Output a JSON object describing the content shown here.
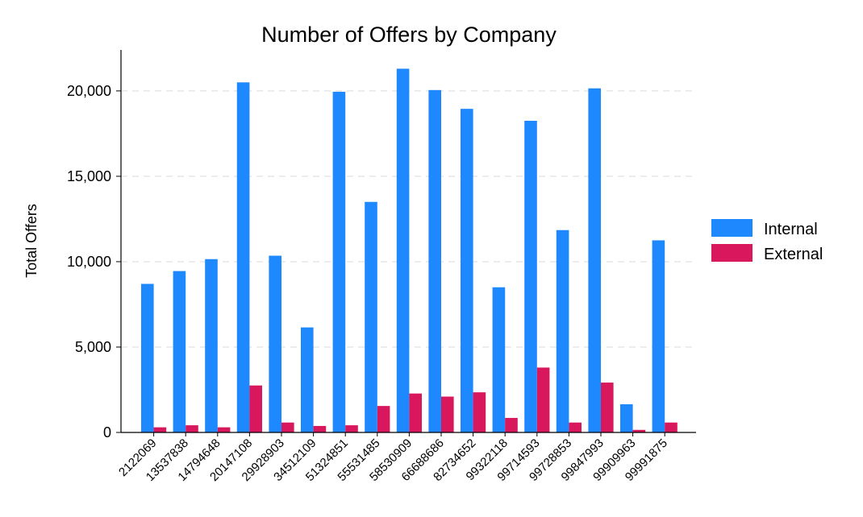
{
  "chart_data": {
    "type": "bar",
    "title": "Number of Offers by Company",
    "xlabel": "",
    "ylabel": "Total Offers",
    "ylim": [
      0,
      22400
    ],
    "yticks": [
      0,
      5000,
      10000,
      15000,
      20000
    ],
    "ytick_labels": [
      "0",
      "5,000",
      "10,000",
      "15,000",
      "20,000"
    ],
    "grid": "horizontal dashed",
    "legend_position": "right",
    "categories": [
      "2122069",
      "13537838",
      "14794648",
      "20147108",
      "29928903",
      "34512109",
      "51324851",
      "55531485",
      "58530909",
      "66688686",
      "82734652",
      "99322118",
      "99714593",
      "99728853",
      "99847993",
      "99909963",
      "99991875"
    ],
    "series": [
      {
        "name": "Internal",
        "color": "#1E88FF",
        "values": [
          8700,
          9450,
          10150,
          20500,
          10350,
          6150,
          19950,
          13500,
          21300,
          20050,
          18950,
          8500,
          18250,
          11850,
          20150,
          1650,
          11250
        ]
      },
      {
        "name": "External",
        "color": "#D8175C",
        "values": [
          300,
          420,
          300,
          2750,
          580,
          380,
          420,
          1550,
          2280,
          2100,
          2350,
          850,
          3800,
          580,
          2920,
          150,
          580
        ]
      }
    ]
  }
}
